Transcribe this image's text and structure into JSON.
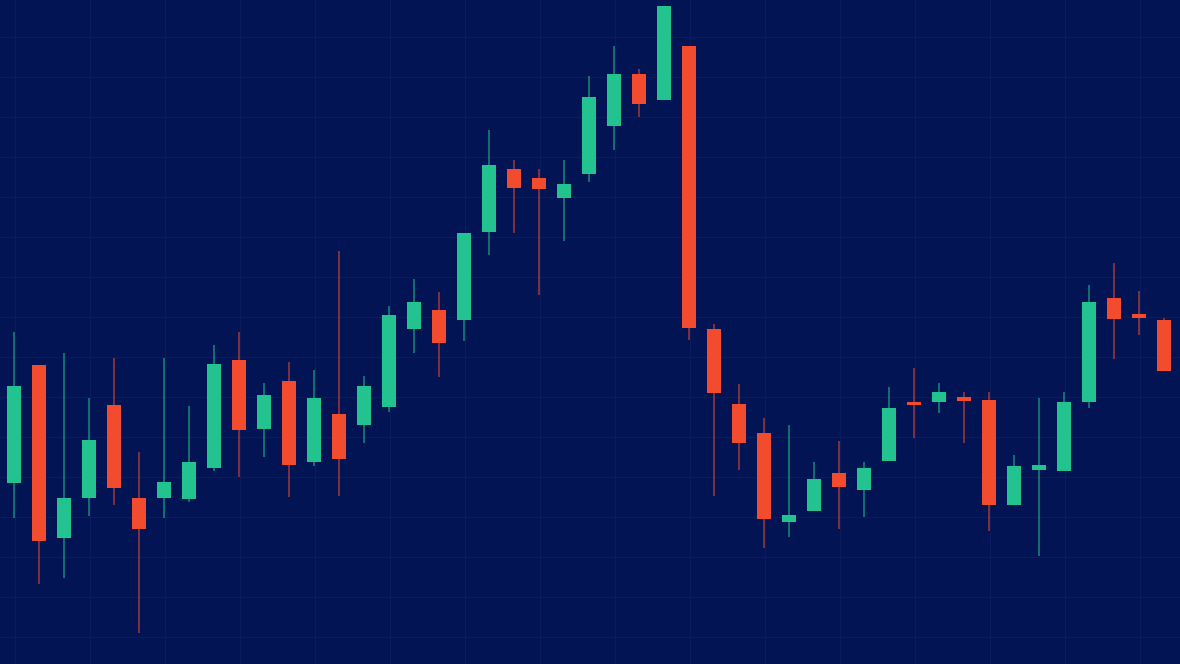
{
  "chart_data": {
    "type": "candlestick",
    "open": [
      181,
      299,
      126,
      166,
      259,
      166,
      166,
      165,
      196,
      304,
      235,
      283,
      202,
      250,
      239,
      257,
      335,
      354,
      344,
      432,
      495,
      486,
      466,
      490,
      538,
      590,
      564,
      618,
      335,
      260,
      231,
      142,
      153,
      191,
      174,
      203,
      262,
      262,
      267,
      264,
      159,
      194,
      193,
      262,
      366,
      350,
      344
    ],
    "high": [
      332,
      299,
      311,
      266,
      306,
      212,
      306,
      258,
      319,
      332,
      281,
      302,
      294,
      413,
      288,
      358,
      385,
      372,
      431,
      534,
      504,
      495,
      504,
      588,
      618,
      595,
      658,
      618,
      340,
      280,
      246,
      239,
      202,
      223,
      202,
      277,
      296,
      281,
      272,
      272,
      209,
      266,
      272,
      379,
      401,
      373,
      346
    ],
    "low": [
      146,
      80,
      86,
      148,
      159,
      31,
      146,
      162,
      193,
      187,
      207,
      167,
      198,
      168,
      221,
      252,
      311,
      287,
      323,
      409,
      431,
      369,
      423,
      482,
      514,
      547,
      564,
      324,
      168,
      194,
      116,
      127,
      153,
      135,
      147,
      203,
      226,
      251,
      221,
      133,
      159,
      108,
      193,
      256,
      305,
      329,
      293
    ],
    "close": [
      278,
      123,
      166,
      224,
      176,
      135,
      182,
      202,
      300,
      234,
      269,
      199,
      266,
      205,
      278,
      349,
      362,
      321,
      431,
      499,
      476,
      475,
      480,
      567,
      590,
      560,
      658,
      336,
      271,
      221,
      145,
      149,
      185,
      177,
      196,
      256,
      259,
      272,
      263,
      159,
      198,
      199,
      262,
      362,
      345,
      346,
      293
    ],
    "up_color": "#22c38e",
    "down_color": "#f24b2d",
    "ylim": [
      0,
      664
    ]
  }
}
